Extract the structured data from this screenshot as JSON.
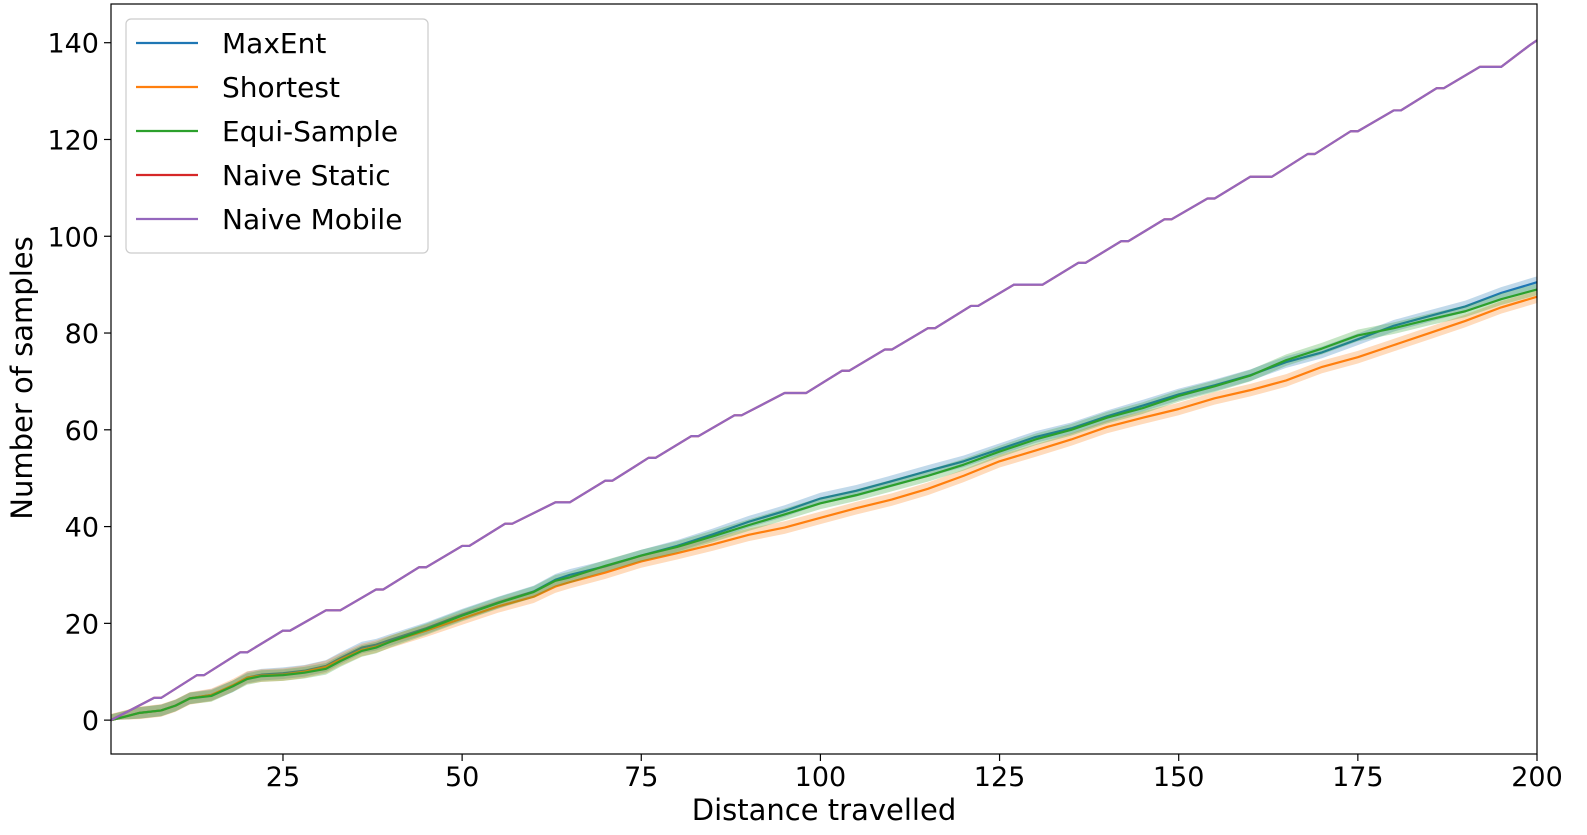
{
  "chart_data": {
    "type": "line",
    "title": "",
    "xlabel": "Distance travelled",
    "ylabel": "Number of samples",
    "xlim": [
      1,
      200
    ],
    "ylim": [
      -7,
      148
    ],
    "x_ticks": [
      25,
      50,
      75,
      100,
      125,
      150,
      175,
      200
    ],
    "y_ticks": [
      0,
      20,
      40,
      60,
      80,
      100,
      120,
      140
    ],
    "grid": false,
    "legend_position": "top-left",
    "series": [
      {
        "name": "MaxEnt",
        "color": "#1f77b4",
        "band": 1.2,
        "points": [
          [
            1,
            0
          ],
          [
            5,
            1.5
          ],
          [
            8,
            2.0
          ],
          [
            10,
            3.0
          ],
          [
            12,
            4.5
          ],
          [
            15,
            5.2
          ],
          [
            18,
            7.0
          ],
          [
            20,
            8.8
          ],
          [
            22,
            9.4
          ],
          [
            25,
            9.7
          ],
          [
            28,
            10.2
          ],
          [
            31,
            11.2
          ],
          [
            33,
            12.8
          ],
          [
            36,
            15.0
          ],
          [
            38,
            15.6
          ],
          [
            40,
            16.6
          ],
          [
            45,
            19.0
          ],
          [
            50,
            21.8
          ],
          [
            55,
            24.3
          ],
          [
            60,
            26.6
          ],
          [
            63,
            29.0
          ],
          [
            65,
            30.0
          ],
          [
            70,
            31.8
          ],
          [
            75,
            34.0
          ],
          [
            80,
            36.0
          ],
          [
            85,
            38.4
          ],
          [
            90,
            41.0
          ],
          [
            95,
            43.2
          ],
          [
            100,
            45.8
          ],
          [
            105,
            47.4
          ],
          [
            110,
            49.4
          ],
          [
            115,
            51.5
          ],
          [
            120,
            53.5
          ],
          [
            125,
            56.0
          ],
          [
            130,
            58.5
          ],
          [
            135,
            60.3
          ],
          [
            140,
            62.8
          ],
          [
            145,
            65.0
          ],
          [
            150,
            67.3
          ],
          [
            155,
            69.2
          ],
          [
            160,
            71.3
          ],
          [
            165,
            74.0
          ],
          [
            170,
            76.0
          ],
          [
            175,
            78.7
          ],
          [
            180,
            81.5
          ],
          [
            185,
            83.5
          ],
          [
            190,
            85.5
          ],
          [
            195,
            88.3
          ],
          [
            200,
            90.5
          ]
        ]
      },
      {
        "name": "Shortest",
        "color": "#ff7f0e",
        "band": 1.3,
        "points": [
          [
            1,
            0
          ],
          [
            5,
            1.5
          ],
          [
            8,
            2.0
          ],
          [
            10,
            3.0
          ],
          [
            12,
            4.5
          ],
          [
            15,
            5.2
          ],
          [
            18,
            7.2
          ],
          [
            20,
            8.8
          ],
          [
            22,
            9.2
          ],
          [
            25,
            9.4
          ],
          [
            28,
            10.0
          ],
          [
            31,
            11.0
          ],
          [
            33,
            12.5
          ],
          [
            36,
            14.5
          ],
          [
            38,
            15.2
          ],
          [
            40,
            16.2
          ],
          [
            45,
            18.5
          ],
          [
            50,
            21.0
          ],
          [
            55,
            23.5
          ],
          [
            60,
            25.5
          ],
          [
            63,
            27.6
          ],
          [
            65,
            28.5
          ],
          [
            70,
            30.5
          ],
          [
            75,
            32.8
          ],
          [
            80,
            34.5
          ],
          [
            85,
            36.3
          ],
          [
            90,
            38.3
          ],
          [
            95,
            39.8
          ],
          [
            100,
            41.8
          ],
          [
            105,
            43.8
          ],
          [
            110,
            45.6
          ],
          [
            115,
            47.8
          ],
          [
            120,
            50.5
          ],
          [
            125,
            53.5
          ],
          [
            130,
            55.7
          ],
          [
            135,
            58.0
          ],
          [
            140,
            60.6
          ],
          [
            145,
            62.5
          ],
          [
            150,
            64.3
          ],
          [
            155,
            66.5
          ],
          [
            160,
            68.2
          ],
          [
            165,
            70.2
          ],
          [
            170,
            73.0
          ],
          [
            175,
            75.0
          ],
          [
            180,
            77.5
          ],
          [
            185,
            80.0
          ],
          [
            190,
            82.5
          ],
          [
            195,
            85.3
          ],
          [
            200,
            87.5
          ]
        ]
      },
      {
        "name": "Equi-Sample",
        "color": "#2ca02c",
        "band": 1.2,
        "points": [
          [
            1,
            0
          ],
          [
            5,
            1.5
          ],
          [
            8,
            2.0
          ],
          [
            10,
            3.0
          ],
          [
            12,
            4.5
          ],
          [
            15,
            5.0
          ],
          [
            18,
            7.0
          ],
          [
            20,
            8.5
          ],
          [
            22,
            9.1
          ],
          [
            25,
            9.3
          ],
          [
            28,
            9.8
          ],
          [
            31,
            10.6
          ],
          [
            33,
            12.2
          ],
          [
            36,
            14.3
          ],
          [
            38,
            15.0
          ],
          [
            40,
            16.2
          ],
          [
            45,
            18.8
          ],
          [
            50,
            21.6
          ],
          [
            55,
            24.2
          ],
          [
            60,
            26.5
          ],
          [
            63,
            28.8
          ],
          [
            65,
            29.5
          ],
          [
            70,
            31.9
          ],
          [
            75,
            34.0
          ],
          [
            80,
            35.8
          ],
          [
            85,
            38.0
          ],
          [
            90,
            40.3
          ],
          [
            95,
            42.5
          ],
          [
            100,
            44.8
          ],
          [
            105,
            46.5
          ],
          [
            110,
            48.5
          ],
          [
            115,
            50.5
          ],
          [
            120,
            52.8
          ],
          [
            125,
            55.5
          ],
          [
            130,
            58.0
          ],
          [
            135,
            60.0
          ],
          [
            140,
            62.5
          ],
          [
            145,
            64.5
          ],
          [
            150,
            67.0
          ],
          [
            155,
            69.0
          ],
          [
            160,
            71.2
          ],
          [
            165,
            74.4
          ],
          [
            170,
            76.8
          ],
          [
            175,
            79.5
          ],
          [
            180,
            81.0
          ],
          [
            185,
            82.8
          ],
          [
            190,
            84.5
          ],
          [
            195,
            87.0
          ],
          [
            200,
            89.0
          ]
        ]
      },
      {
        "name": "Naive Static",
        "color": "#d62728",
        "band": 0,
        "points": [
          [
            1,
            0
          ],
          [
            7,
            4.6
          ],
          [
            8,
            4.6
          ],
          [
            13,
            9.3
          ],
          [
            14,
            9.3
          ],
          [
            19,
            14.0
          ],
          [
            20,
            14.0
          ],
          [
            25,
            18.5
          ],
          [
            26,
            18.5
          ],
          [
            31,
            22.7
          ],
          [
            33,
            22.7
          ],
          [
            38,
            27.0
          ],
          [
            39,
            27.0
          ],
          [
            44,
            31.6
          ],
          [
            45,
            31.6
          ],
          [
            50,
            36.0
          ],
          [
            51,
            36.0
          ],
          [
            56,
            40.6
          ],
          [
            57,
            40.6
          ],
          [
            63,
            45.0
          ],
          [
            65,
            45.0
          ],
          [
            70,
            49.5
          ],
          [
            71,
            49.5
          ],
          [
            76,
            54.2
          ],
          [
            77,
            54.2
          ],
          [
            82,
            58.7
          ],
          [
            83,
            58.7
          ],
          [
            88,
            63.0
          ],
          [
            89,
            63.0
          ],
          [
            95,
            67.6
          ],
          [
            98,
            67.6
          ],
          [
            103,
            72.2
          ],
          [
            104,
            72.2
          ],
          [
            109,
            76.6
          ],
          [
            110,
            76.6
          ],
          [
            115,
            81.0
          ],
          [
            116,
            81.0
          ],
          [
            121,
            85.6
          ],
          [
            122,
            85.6
          ],
          [
            127,
            90.0
          ],
          [
            131,
            90.0
          ],
          [
            136,
            94.5
          ],
          [
            137,
            94.5
          ],
          [
            142,
            99.0
          ],
          [
            143,
            99.0
          ],
          [
            148,
            103.5
          ],
          [
            149,
            103.5
          ],
          [
            154,
            107.8
          ],
          [
            155,
            107.8
          ],
          [
            160,
            112.3
          ],
          [
            163,
            112.3
          ],
          [
            168,
            117.0
          ],
          [
            169,
            117.0
          ],
          [
            174,
            121.7
          ],
          [
            175,
            121.7
          ],
          [
            180,
            126.0
          ],
          [
            181,
            126.0
          ],
          [
            186,
            130.6
          ],
          [
            187,
            130.6
          ],
          [
            192,
            135.0
          ],
          [
            195,
            135.0
          ],
          [
            199,
            139.5
          ],
          [
            200,
            140.5
          ]
        ]
      },
      {
        "name": "Naive Mobile",
        "color": "#9467bd",
        "band": 0,
        "points": [
          [
            1,
            0
          ],
          [
            7,
            4.6
          ],
          [
            8,
            4.6
          ],
          [
            13,
            9.3
          ],
          [
            14,
            9.3
          ],
          [
            19,
            14.0
          ],
          [
            20,
            14.0
          ],
          [
            25,
            18.5
          ],
          [
            26,
            18.5
          ],
          [
            31,
            22.7
          ],
          [
            33,
            22.7
          ],
          [
            38,
            27.0
          ],
          [
            39,
            27.0
          ],
          [
            44,
            31.6
          ],
          [
            45,
            31.6
          ],
          [
            50,
            36.0
          ],
          [
            51,
            36.0
          ],
          [
            56,
            40.6
          ],
          [
            57,
            40.6
          ],
          [
            63,
            45.0
          ],
          [
            65,
            45.0
          ],
          [
            70,
            49.5
          ],
          [
            71,
            49.5
          ],
          [
            76,
            54.2
          ],
          [
            77,
            54.2
          ],
          [
            82,
            58.7
          ],
          [
            83,
            58.7
          ],
          [
            88,
            63.0
          ],
          [
            89,
            63.0
          ],
          [
            95,
            67.6
          ],
          [
            98,
            67.6
          ],
          [
            103,
            72.2
          ],
          [
            104,
            72.2
          ],
          [
            109,
            76.6
          ],
          [
            110,
            76.6
          ],
          [
            115,
            81.0
          ],
          [
            116,
            81.0
          ],
          [
            121,
            85.6
          ],
          [
            122,
            85.6
          ],
          [
            127,
            90.0
          ],
          [
            131,
            90.0
          ],
          [
            136,
            94.5
          ],
          [
            137,
            94.5
          ],
          [
            142,
            99.0
          ],
          [
            143,
            99.0
          ],
          [
            148,
            103.5
          ],
          [
            149,
            103.5
          ],
          [
            154,
            107.8
          ],
          [
            155,
            107.8
          ],
          [
            160,
            112.3
          ],
          [
            163,
            112.3
          ],
          [
            168,
            117.0
          ],
          [
            169,
            117.0
          ],
          [
            174,
            121.7
          ],
          [
            175,
            121.7
          ],
          [
            180,
            126.0
          ],
          [
            181,
            126.0
          ],
          [
            186,
            130.6
          ],
          [
            187,
            130.6
          ],
          [
            192,
            135.0
          ],
          [
            195,
            135.0
          ],
          [
            199,
            139.5
          ],
          [
            200,
            140.5
          ]
        ]
      }
    ]
  }
}
